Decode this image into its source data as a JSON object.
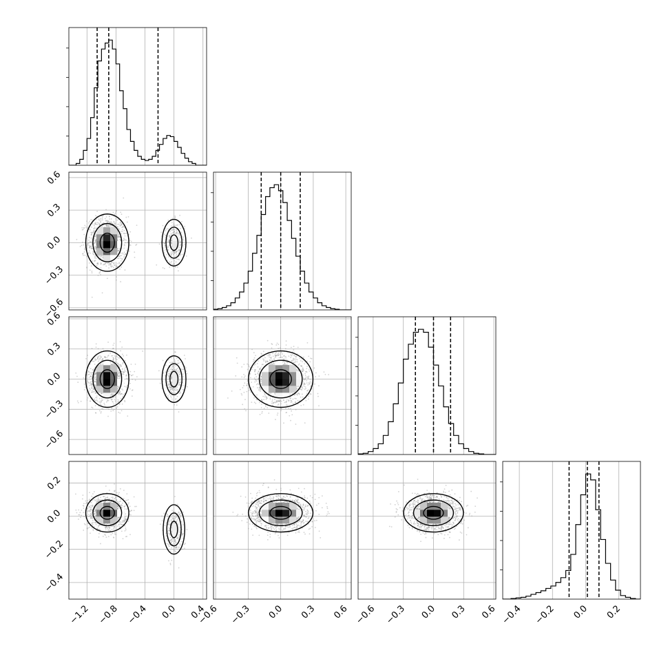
{
  "chart_data": {
    "type": "corner",
    "title": "",
    "grid": true,
    "n_params": 4,
    "parameters": [
      {
        "label": "",
        "range": [
          -1.45,
          0.45
        ],
        "ticks": [
          -1.2,
          -0.8,
          -0.4,
          0.0,
          0.4
        ]
      },
      {
        "label": "",
        "range": [
          -0.62,
          0.65
        ],
        "ticks": [
          -0.6,
          -0.3,
          0.0,
          0.3,
          0.6
        ]
      },
      {
        "label": "",
        "range": [
          -0.75,
          0.62
        ],
        "ticks": [
          -0.6,
          -0.3,
          0.0,
          0.3,
          0.6
        ]
      },
      {
        "label": "",
        "range": [
          -0.5,
          0.33
        ],
        "ticks": [
          -0.4,
          -0.2,
          0.0,
          0.2
        ]
      }
    ],
    "tick_text": {
      "p0": [
        "−1.2",
        "−0.8",
        "−0.4",
        "0.0",
        "0.4"
      ],
      "p1": [
        "−0.6",
        "−0.3",
        "0.0",
        "0.3",
        "0.6"
      ],
      "p2": [
        "−0.6",
        "−0.3",
        "0.0",
        "0.3",
        "0.6"
      ],
      "p3": [
        "−0.4",
        "−0.2",
        "0.0",
        "0.2"
      ]
    },
    "quantiles": [
      [
        -1.06,
        -0.9,
        -0.22
      ],
      [
        -0.18,
        0.0,
        0.18
      ],
      [
        -0.18,
        0.0,
        0.17
      ],
      [
        -0.1,
        0.01,
        0.08
      ]
    ],
    "histograms": [
      {
        "bin_edges": [
          -1.45,
          -1.35,
          -1.3,
          -1.25,
          -1.2,
          -1.15,
          -1.1,
          -1.05,
          -1.0,
          -0.95,
          -0.9,
          -0.85,
          -0.8,
          -0.75,
          -0.7,
          -0.65,
          -0.6,
          -0.55,
          -0.5,
          -0.45,
          -0.4,
          -0.35,
          -0.3,
          -0.25,
          -0.2,
          -0.15,
          -0.1,
          -0.05,
          0.0,
          0.05,
          0.1,
          0.15,
          0.2,
          0.25,
          0.3,
          0.45
        ],
        "counts": [
          0,
          3,
          10,
          25,
          45,
          80,
          130,
          175,
          195,
          205,
          210,
          195,
          170,
          125,
          95,
          60,
          40,
          25,
          15,
          10,
          8,
          10,
          15,
          25,
          35,
          45,
          50,
          48,
          40,
          30,
          20,
          12,
          6,
          3,
          0
        ]
      },
      {
        "bin_edges": [
          -0.62,
          -0.58,
          -0.54,
          -0.5,
          -0.46,
          -0.42,
          -0.38,
          -0.34,
          -0.3,
          -0.26,
          -0.22,
          -0.18,
          -0.14,
          -0.1,
          -0.06,
          -0.02,
          0.02,
          0.06,
          0.1,
          0.14,
          0.18,
          0.22,
          0.26,
          0.3,
          0.34,
          0.38,
          0.42,
          0.46,
          0.5,
          0.54,
          0.58,
          0.65
        ],
        "counts": [
          1,
          2,
          4,
          7,
          12,
          20,
          30,
          45,
          65,
          95,
          125,
          160,
          190,
          205,
          210,
          200,
          180,
          150,
          120,
          90,
          65,
          45,
          30,
          20,
          12,
          7,
          4,
          2,
          1,
          0,
          0
        ]
      },
      {
        "bin_edges": [
          -0.75,
          -0.7,
          -0.65,
          -0.6,
          -0.55,
          -0.5,
          -0.45,
          -0.4,
          -0.35,
          -0.3,
          -0.25,
          -0.2,
          -0.15,
          -0.1,
          -0.05,
          0.0,
          0.05,
          0.1,
          0.15,
          0.2,
          0.25,
          0.3,
          0.35,
          0.4,
          0.45,
          0.5,
          0.55,
          0.62
        ],
        "counts": [
          1,
          2,
          5,
          10,
          18,
          32,
          55,
          85,
          120,
          160,
          185,
          205,
          210,
          205,
          180,
          150,
          115,
          80,
          52,
          32,
          18,
          10,
          5,
          2,
          1,
          0,
          0
        ]
      },
      {
        "bin_edges": [
          -0.5,
          -0.45,
          -0.42,
          -0.39,
          -0.36,
          -0.33,
          -0.3,
          -0.27,
          -0.24,
          -0.21,
          -0.18,
          -0.15,
          -0.12,
          -0.09,
          -0.06,
          -0.03,
          0.0,
          0.03,
          0.06,
          0.09,
          0.12,
          0.15,
          0.18,
          0.21,
          0.24,
          0.27,
          0.3,
          0.33
        ],
        "counts": [
          0,
          1,
          2,
          3,
          5,
          8,
          11,
          14,
          18,
          22,
          28,
          36,
          48,
          75,
          125,
          175,
          210,
          200,
          150,
          100,
          60,
          32,
          15,
          6,
          3,
          1,
          0
        ]
      }
    ],
    "contour_levels": [
      0.393,
      0.865,
      0.989
    ],
    "joint_modes": [
      {
        "pair": [
          1,
          0
        ],
        "modes": [
          {
            "x": -0.92,
            "y": 0.0,
            "sx": 0.18,
            "sy": 0.16,
            "w": 0.78
          },
          {
            "x": 0.0,
            "y": 0.0,
            "sx": 0.1,
            "sy": 0.13,
            "w": 0.22
          }
        ]
      },
      {
        "pair": [
          2,
          0
        ],
        "modes": [
          {
            "x": -0.92,
            "y": 0.0,
            "sx": 0.18,
            "sy": 0.17,
            "w": 0.78
          },
          {
            "x": 0.0,
            "y": 0.0,
            "sx": 0.1,
            "sy": 0.14,
            "w": 0.22
          }
        ]
      },
      {
        "pair": [
          2,
          1
        ],
        "modes": [
          {
            "x": 0.0,
            "y": 0.0,
            "sx": 0.18,
            "sy": 0.17,
            "w": 1.0
          }
        ]
      },
      {
        "pair": [
          3,
          0
        ],
        "modes": [
          {
            "x": -0.92,
            "y": 0.02,
            "sx": 0.18,
            "sy": 0.07,
            "w": 0.78
          },
          {
            "x": 0.0,
            "y": -0.08,
            "sx": 0.09,
            "sy": 0.09,
            "w": 0.22
          }
        ]
      },
      {
        "pair": [
          3,
          1
        ],
        "modes": [
          {
            "x": 0.0,
            "y": 0.02,
            "sx": 0.18,
            "sy": 0.07,
            "w": 1.0
          }
        ]
      },
      {
        "pair": [
          3,
          2
        ],
        "modes": [
          {
            "x": 0.0,
            "y": 0.02,
            "sx": 0.18,
            "sy": 0.07,
            "w": 1.0
          }
        ]
      }
    ]
  }
}
